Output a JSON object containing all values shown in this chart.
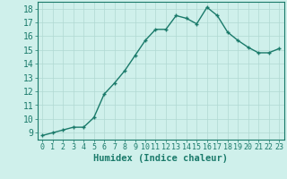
{
  "x": [
    0,
    1,
    2,
    3,
    4,
    5,
    6,
    7,
    8,
    9,
    10,
    11,
    12,
    13,
    14,
    15,
    16,
    17,
    18,
    19,
    20,
    21,
    22,
    23
  ],
  "y": [
    8.8,
    9.0,
    9.2,
    9.4,
    9.4,
    10.1,
    11.8,
    12.6,
    13.5,
    14.6,
    15.7,
    16.5,
    16.5,
    17.5,
    17.3,
    16.9,
    18.1,
    17.5,
    16.3,
    15.7,
    15.2,
    14.8,
    14.8,
    15.1
  ],
  "xlim": [
    -0.5,
    23.5
  ],
  "ylim": [
    8.5,
    18.5
  ],
  "yticks": [
    9,
    10,
    11,
    12,
    13,
    14,
    15,
    16,
    17,
    18
  ],
  "xtick_labels": [
    "0",
    "1",
    "2",
    "3",
    "4",
    "5",
    "6",
    "7",
    "8",
    "9",
    "10",
    "11",
    "12",
    "13",
    "14",
    "15",
    "16",
    "17",
    "18",
    "19",
    "20",
    "21",
    "22",
    "23"
  ],
  "xlabel": "Humidex (Indice chaleur)",
  "line_color": "#1a7a6a",
  "marker": "+",
  "bg_color": "#cff0eb",
  "grid_color": "#b0d8d2",
  "label_color": "#1a7a6a",
  "tick_color": "#1a7a6a",
  "spine_color": "#1a7a6a",
  "xlabel_fontsize": 7.5,
  "ytick_fontsize": 7,
  "xtick_fontsize": 6
}
